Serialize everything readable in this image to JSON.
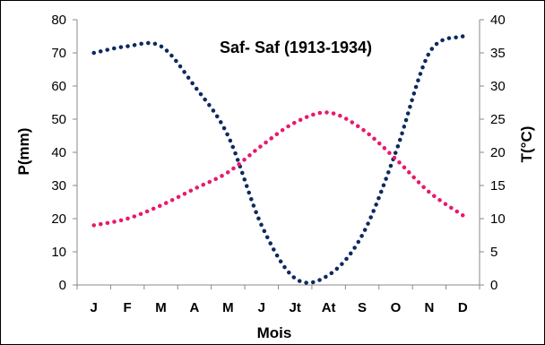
{
  "chart_data": {
    "type": "line",
    "title": "Saf- Saf (1913-1934)",
    "xlabel": "Mois",
    "ylabel_left": "P(mm)",
    "ylabel_right": "T(°C)",
    "categories": [
      "J",
      "F",
      "M",
      "A",
      "M",
      "J",
      "Jt",
      "At",
      "S",
      "O",
      "N",
      "D"
    ],
    "y_left": {
      "min": 0,
      "max": 80,
      "step": 10
    },
    "y_right": {
      "min": 0,
      "max": 40,
      "step": 5
    },
    "grid": false,
    "series": [
      {
        "axis": "left",
        "color": "#0d2a5e",
        "style": "dotted",
        "values": [
          70,
          72,
          72,
          60,
          45,
          18,
          2,
          3,
          15,
          40,
          70,
          75
        ]
      },
      {
        "axis": "right",
        "color": "#e8196e",
        "style": "dotted",
        "values": [
          9,
          10,
          12,
          14.5,
          17,
          21,
          24.5,
          26,
          23.5,
          19,
          14,
          10.5
        ]
      }
    ]
  }
}
